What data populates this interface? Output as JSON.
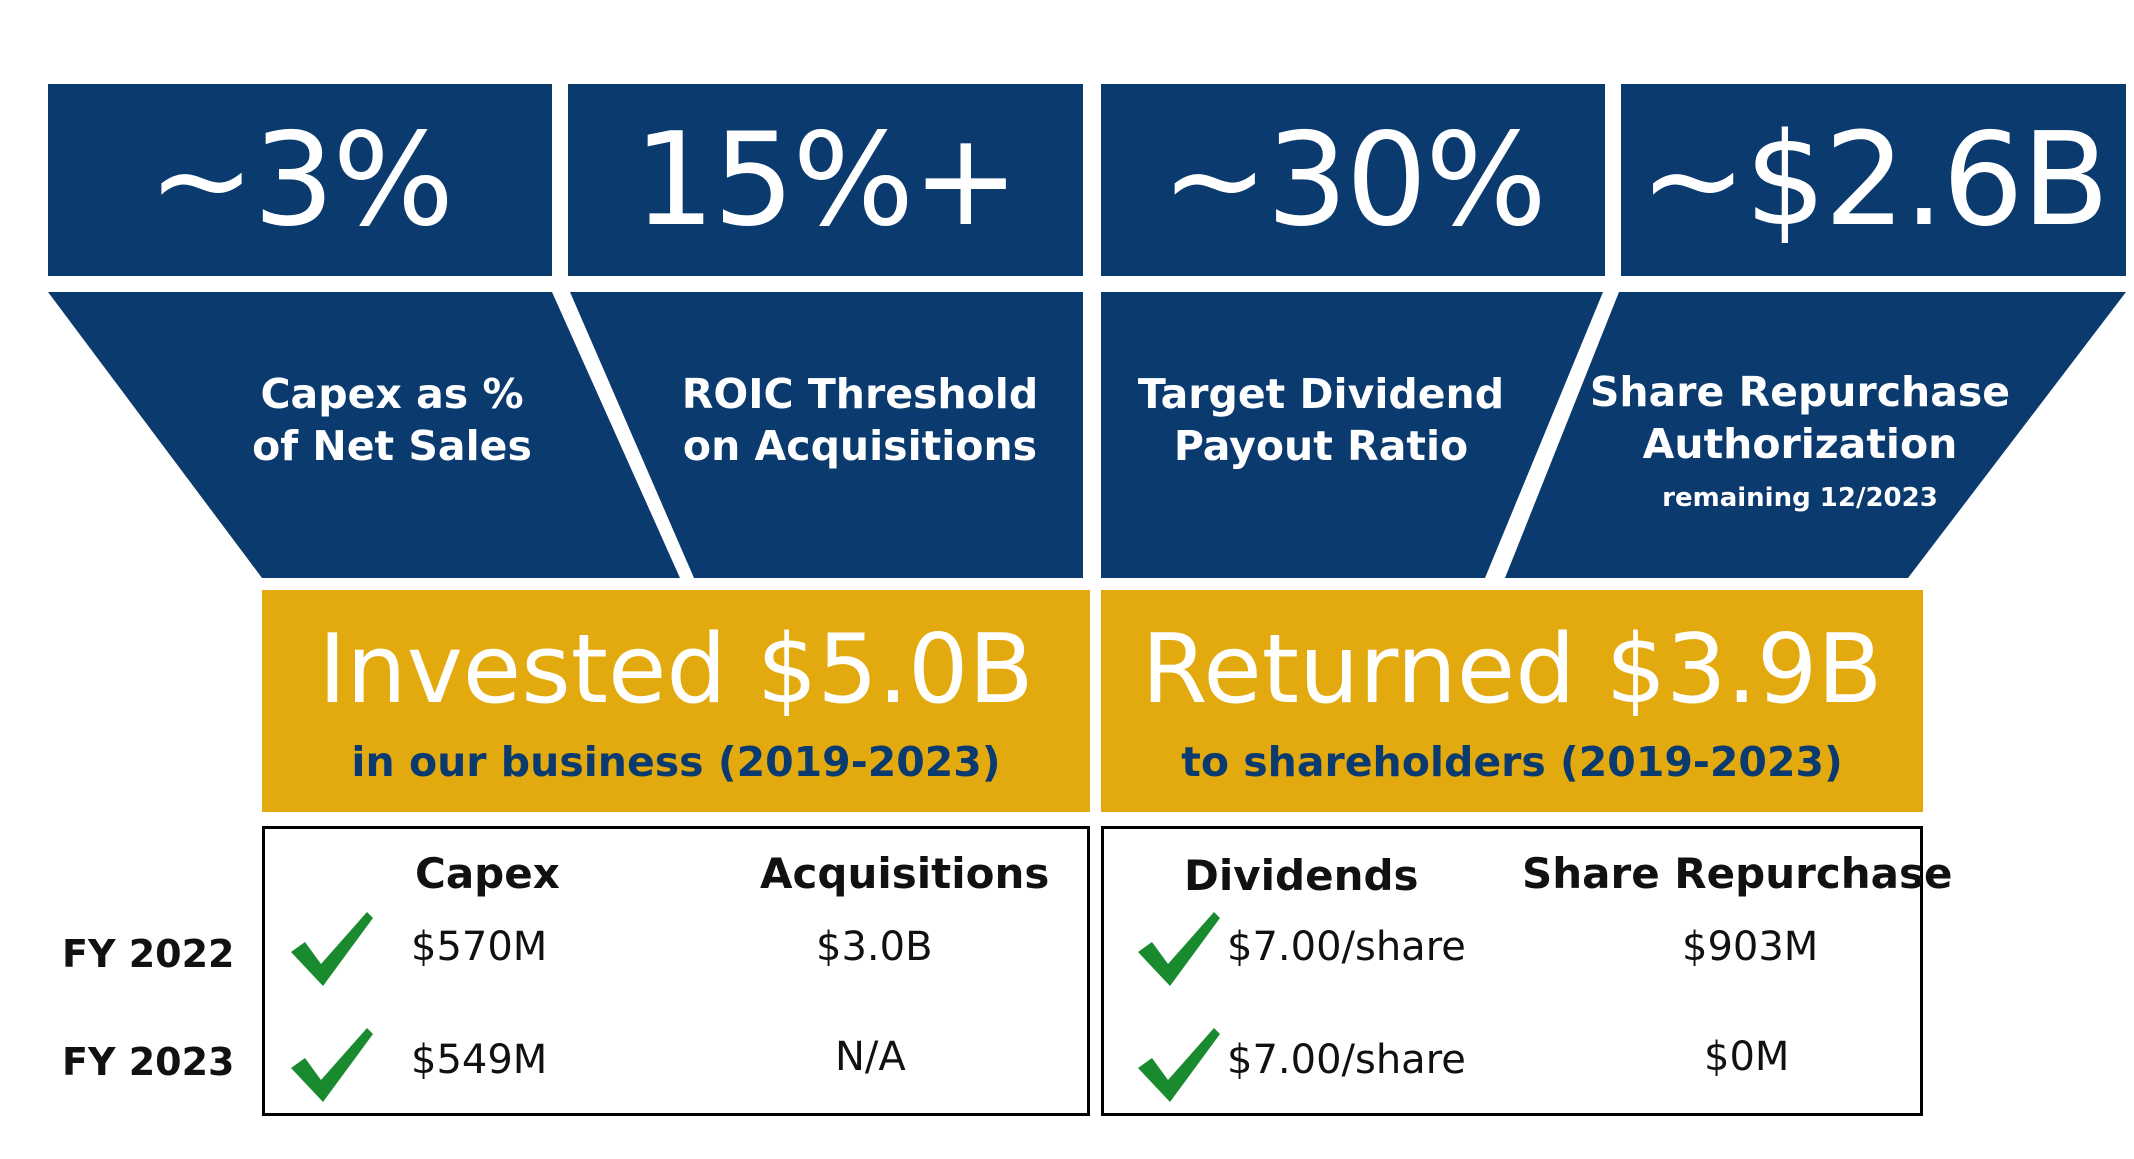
{
  "colors": {
    "navy": "#0b3a6e",
    "gold": "#e3aa10",
    "check": "#1a8a2e"
  },
  "stats": [
    {
      "value": "~3%",
      "label_line1": "Capex as %",
      "label_line2": "of Net Sales"
    },
    {
      "value": "15%+",
      "label_line1": "ROIC Threshold",
      "label_line2": "on Acquisitions"
    },
    {
      "value": "~30%",
      "label_line1": "Target Dividend",
      "label_line2": "Payout Ratio"
    },
    {
      "value": "~$2.6B",
      "label_line1": "Share Repurchase",
      "label_line2": "Authorization",
      "note": "remaining 12/2023"
    }
  ],
  "invested": {
    "headline": "Invested $5.0B",
    "subline": "in our business (2019-2023)"
  },
  "returned": {
    "headline": "Returned $3.9B",
    "subline": "to shareholders (2019-2023)"
  },
  "years": [
    "FY 2022",
    "FY 2023"
  ],
  "table_left": {
    "headers": [
      "Capex",
      "Acquisitions"
    ],
    "rows": [
      [
        "$570M",
        "$3.0B"
      ],
      [
        "$549M",
        "N/A"
      ]
    ]
  },
  "table_right": {
    "headers": [
      "Dividends",
      "Share Repurchase"
    ],
    "rows": [
      [
        "$7.00/share",
        "$903M"
      ],
      [
        "$7.00/share",
        "$0M"
      ]
    ]
  },
  "icons": {
    "check": "checkmark-icon"
  }
}
